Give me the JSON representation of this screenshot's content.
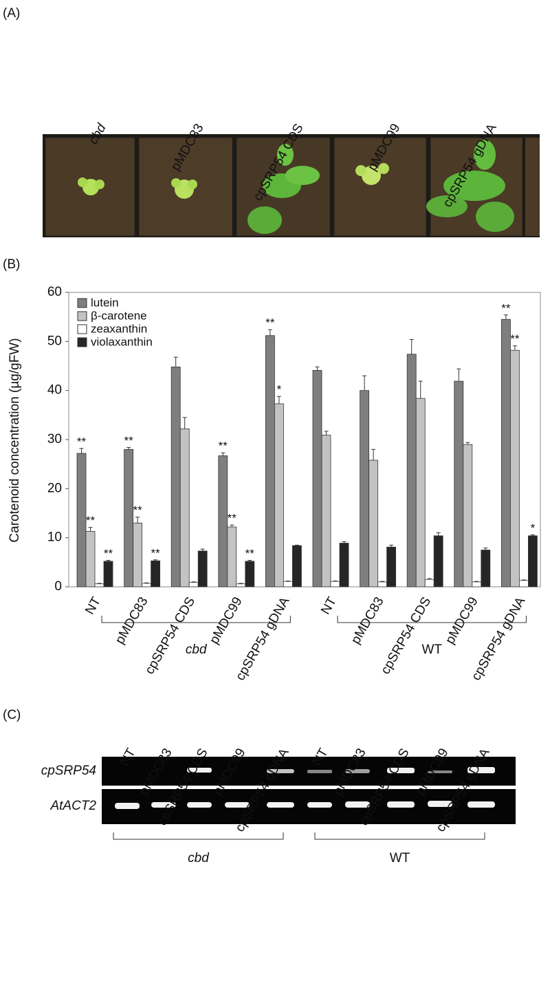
{
  "panel_a": {
    "label": "(A)",
    "columns": [
      "cbd",
      "pMDC83",
      "cpSRP54 CDS",
      "pMDC99",
      "cpSRP54 gDNA"
    ]
  },
  "chart_data": {
    "type": "bar",
    "panel_label": "(B)",
    "y_label": "Carotenoid concentration (µg/gFW)",
    "categories": [
      "NT",
      "pMDC83",
      "cpSRP54 CDS",
      "pMDC99",
      "cpSRP54 gDNA",
      "NT",
      "pMDC83",
      "cpSRP54 CDS",
      "pMDC99",
      "cpSRP54 gDNA"
    ],
    "groups": [
      "cbd",
      "WT"
    ],
    "series": [
      {
        "name": "lutein",
        "color": "#7f7f7f",
        "values": [
          27.2,
          28.0,
          44.8,
          26.7,
          51.2,
          44.1,
          40.0,
          47.4,
          41.9,
          54.5
        ],
        "errors": [
          1.0,
          0.4,
          2.0,
          0.6,
          1.2,
          0.7,
          3.0,
          3.0,
          2.5,
          0.9
        ],
        "annotations": [
          "**",
          "**",
          null,
          "**",
          "**",
          null,
          null,
          null,
          null,
          "**"
        ]
      },
      {
        "name": "β-carotene",
        "color": "#c3c3c3",
        "values": [
          11.3,
          13.0,
          32.2,
          12.2,
          37.3,
          30.9,
          25.8,
          38.4,
          29.0,
          48.2
        ],
        "errors": [
          0.8,
          1.2,
          2.3,
          0.4,
          1.5,
          0.8,
          2.2,
          3.5,
          0.4,
          0.9
        ],
        "annotations": [
          "**",
          "**",
          null,
          "**",
          "*",
          null,
          null,
          null,
          null,
          "**"
        ]
      },
      {
        "name": "zeaxanthin",
        "color": "#ffffff",
        "values": [
          0.6,
          0.7,
          0.9,
          0.6,
          1.1,
          1.1,
          1.0,
          1.5,
          1.0,
          1.3
        ],
        "errors": [
          0.1,
          0.1,
          0.1,
          0.1,
          0.1,
          0.1,
          0.1,
          0.2,
          0.1,
          0.1
        ]
      },
      {
        "name": "violaxanthin",
        "color": "#262626",
        "values": [
          5.2,
          5.3,
          7.3,
          5.2,
          8.4,
          8.9,
          8.1,
          10.4,
          7.5,
          10.4
        ],
        "errors": [
          0.2,
          0.2,
          0.4,
          0.2,
          0.1,
          0.3,
          0.4,
          0.6,
          0.4,
          0.2
        ],
        "annotations": [
          "**",
          "**",
          null,
          "**",
          null,
          null,
          null,
          null,
          null,
          "*"
        ]
      }
    ],
    "ylim": [
      0,
      60
    ],
    "yticks": [
      0,
      10,
      20,
      30,
      40,
      50,
      60
    ],
    "legend": "upper left"
  },
  "panel_c": {
    "label": "(C)",
    "lanes": [
      "NT",
      "pMDC83",
      "cpSRP54 CDS",
      "pMDC99",
      "cpSRP54 gDNA",
      "NT",
      "pMDC83",
      "cpSRP54 CDS",
      "pMDC99",
      "cpSRP54 gDNA"
    ],
    "rows": [
      "cpSRP54",
      "AtACT2"
    ],
    "groups": [
      "cbd",
      "WT"
    ]
  }
}
